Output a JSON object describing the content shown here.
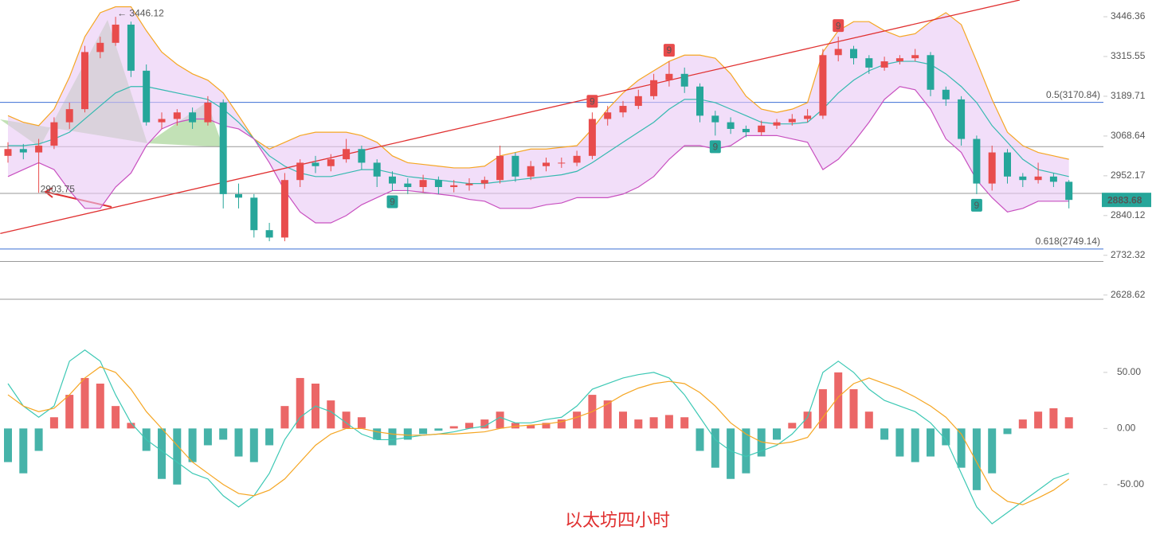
{
  "chart_data": [
    {
      "type": "candlestick",
      "title": "以太坊四小时",
      "log_scale": true,
      "ylim": [
        2540,
        3503
      ],
      "yticks": [
        3446.36,
        3315.55,
        3189.71,
        3068.64,
        2952.17,
        2840.12,
        2732.32,
        2628.62
      ],
      "up_color": "#e84c4c",
      "down_color": "#26a69a",
      "open": [
        3010,
        3030,
        3020,
        3040,
        3110,
        3150,
        3330,
        3360,
        3420,
        3270,
        3110,
        3120,
        3140,
        3110,
        3170,
        2900,
        2890,
        2800,
        2780,
        2940,
        2990,
        2980,
        3000,
        3030,
        2990,
        2950,
        2930,
        2920,
        2940,
        2920,
        2925,
        2930,
        2940,
        3010,
        2950,
        2980,
        2990,
        2990,
        3010,
        3120,
        3140,
        3160,
        3190,
        3240,
        3260,
        3220,
        3130,
        3110,
        3090,
        3080,
        3100,
        3110,
        3120,
        3130,
        3320,
        3340,
        3310,
        3280,
        3300,
        3310,
        3320,
        3210,
        3180,
        3060,
        2930,
        3020,
        2950,
        2940,
        2950,
        2935
      ],
      "high": [
        3050,
        3045,
        3060,
        3125,
        3170,
        3350,
        3380,
        3446.12,
        3430,
        3290,
        3140,
        3150,
        3155,
        3190,
        3180,
        2930,
        2900,
        2820,
        2960,
        3000,
        3010,
        3015,
        3060,
        3040,
        3000,
        2965,
        2945,
        2955,
        2950,
        2940,
        2945,
        2950,
        3040,
        3020,
        2995,
        3005,
        3005,
        3025,
        3140,
        3160,
        3175,
        3210,
        3260,
        3300,
        3280,
        3230,
        3145,
        3125,
        3100,
        3115,
        3120,
        3135,
        3150,
        3340,
        3380,
        3350,
        3320,
        3315,
        3320,
        3340,
        3330,
        3220,
        3190,
        3070,
        3040,
        3030,
        2960,
        2990,
        2960,
        2940
      ],
      "low": [
        2990,
        3000,
        2903.75,
        3030,
        3090,
        3140,
        3310,
        3350,
        3250,
        3100,
        3090,
        3100,
        3090,
        3100,
        2860,
        2860,
        2780,
        2770,
        2770,
        2920,
        2960,
        2965,
        2990,
        2970,
        2920,
        2910,
        2900,
        2905,
        2900,
        2905,
        2910,
        2915,
        2930,
        2935,
        2940,
        2965,
        2975,
        2980,
        3000,
        3100,
        3125,
        3150,
        3180,
        3220,
        3200,
        3110,
        3070,
        3075,
        3065,
        3070,
        3090,
        3100,
        3110,
        3120,
        3300,
        3290,
        3260,
        3270,
        3290,
        3300,
        3190,
        3160,
        3040,
        2900,
        2910,
        2930,
        2920,
        2930,
        2920,
        2860
      ],
      "close": [
        3030,
        3020,
        3040,
        3110,
        3150,
        3330,
        3360,
        3420,
        3270,
        3110,
        3120,
        3140,
        3110,
        3170,
        2900,
        2890,
        2800,
        2780,
        2940,
        2990,
        2980,
        3000,
        3030,
        2990,
        2950,
        2930,
        2920,
        2940,
        2920,
        2925,
        2930,
        2940,
        3010,
        2950,
        2980,
        2990,
        2990,
        3010,
        3120,
        3140,
        3160,
        3190,
        3240,
        3260,
        3220,
        3130,
        3110,
        3090,
        3080,
        3100,
        3110,
        3120,
        3130,
        3320,
        3340,
        3310,
        3280,
        3300,
        3310,
        3320,
        3210,
        3180,
        3060,
        2930,
        3020,
        2950,
        2940,
        2950,
        2935,
        2883.68
      ],
      "bands": {
        "upper": [
          3130,
          3110,
          3100,
          3150,
          3250,
          3380,
          3460,
          3480,
          3480,
          3400,
          3330,
          3290,
          3260,
          3240,
          3200,
          3130,
          3060,
          3030,
          3050,
          3070,
          3080,
          3080,
          3080,
          3070,
          3050,
          3010,
          2990,
          2985,
          2980,
          2975,
          2975,
          2980,
          3010,
          3020,
          3030,
          3030,
          3035,
          3040,
          3090,
          3150,
          3200,
          3240,
          3270,
          3300,
          3320,
          3320,
          3310,
          3260,
          3190,
          3150,
          3140,
          3150,
          3170,
          3330,
          3400,
          3430,
          3430,
          3400,
          3380,
          3390,
          3430,
          3460,
          3420,
          3300,
          3180,
          3080,
          3040,
          3020,
          3010,
          3000
        ],
        "middle": [
          3040,
          3040,
          3045,
          3060,
          3080,
          3120,
          3160,
          3200,
          3220,
          3220,
          3210,
          3200,
          3190,
          3180,
          3150,
          3110,
          3060,
          3010,
          2980,
          2960,
          2950,
          2950,
          2960,
          2970,
          2970,
          2960,
          2950,
          2945,
          2940,
          2935,
          2930,
          2930,
          2935,
          2940,
          2945,
          2950,
          2955,
          2965,
          2990,
          3020,
          3050,
          3080,
          3110,
          3150,
          3180,
          3180,
          3170,
          3150,
          3130,
          3110,
          3105,
          3105,
          3110,
          3150,
          3200,
          3240,
          3270,
          3290,
          3300,
          3300,
          3290,
          3260,
          3220,
          3170,
          3100,
          3050,
          3000,
          2970,
          2960,
          2950
        ],
        "lower": [
          2950,
          2970,
          2990,
          2970,
          2910,
          2860,
          2860,
          2920,
          2960,
          3040,
          3090,
          3110,
          3120,
          3120,
          3100,
          3090,
          3060,
          2990,
          2910,
          2850,
          2820,
          2820,
          2840,
          2870,
          2890,
          2910,
          2910,
          2905,
          2900,
          2895,
          2885,
          2880,
          2860,
          2860,
          2860,
          2870,
          2875,
          2890,
          2890,
          2890,
          2900,
          2920,
          2950,
          3000,
          3040,
          3040,
          3030,
          3040,
          3070,
          3070,
          3070,
          3060,
          3050,
          2970,
          3000,
          3050,
          3110,
          3180,
          3220,
          3210,
          3150,
          3060,
          3020,
          2940,
          2890,
          2850,
          2860,
          2880,
          2880,
          2880
        ],
        "upper_color": "#f5a623",
        "middle_color": "#35b9b0",
        "lower_color": "#c850c0",
        "fill_color": "#e9c8f5"
      },
      "fib_levels": [
        {
          "label": "0.5(3170.84)",
          "value": 3170.84
        },
        {
          "label": "0.618(2749.14)",
          "value": 2749.14
        }
      ],
      "fib_color": "#3b6fd4",
      "levels": [
        3037,
        2902,
        2716,
        2618
      ],
      "trendline": {
        "index": [
          -0.5,
          65.8
        ],
        "values": [
          2791,
          3503
        ],
        "color": "#e03030"
      },
      "annotations": [
        {
          "text": "← 3446.12",
          "index": 7,
          "value": 3446.12
        },
        {
          "text": "2903.75",
          "index": 2,
          "value": 2903.75
        }
      ],
      "td_marks": [
        {
          "label": "9",
          "index": 38,
          "side": "above"
        },
        {
          "label": "9",
          "index": 43,
          "side": "above"
        },
        {
          "label": "9",
          "index": 54,
          "side": "above"
        },
        {
          "label": "9",
          "index": 25,
          "side": "below"
        },
        {
          "label": "9",
          "index": 46,
          "side": "below"
        },
        {
          "label": "9",
          "index": 63,
          "side": "below"
        }
      ]
    },
    {
      "type": "macd",
      "ylim": [
        -97,
        84
      ],
      "yticks": [
        {
          "value": 50,
          "label": "50.00"
        },
        {
          "value": 0,
          "label": "0.00"
        },
        {
          "value": -50,
          "label": "-50.00"
        }
      ],
      "up_color": "#e84c4c",
      "down_color": "#26a69a",
      "dif_color": "#3cc8b4",
      "dea_color": "#f5a623",
      "histogram": [
        -30,
        -40,
        -20,
        10,
        30,
        45,
        40,
        20,
        5,
        -20,
        -45,
        -50,
        -30,
        -15,
        -10,
        -25,
        -30,
        -15,
        20,
        45,
        40,
        25,
        15,
        10,
        -10,
        -15,
        -10,
        -5,
        -2,
        2,
        5,
        8,
        15,
        5,
        3,
        5,
        8,
        15,
        30,
        25,
        15,
        8,
        10,
        12,
        10,
        -20,
        -35,
        -45,
        -40,
        -25,
        -10,
        5,
        15,
        35,
        50,
        35,
        15,
        -10,
        -25,
        -30,
        -25,
        -15,
        -35,
        -55,
        -40,
        -5,
        8,
        15,
        18,
        10
      ],
      "dif": [
        40,
        20,
        10,
        20,
        60,
        70,
        60,
        30,
        5,
        -10,
        -20,
        -30,
        -40,
        -45,
        -60,
        -70,
        -60,
        -40,
        -10,
        10,
        20,
        15,
        5,
        -5,
        -10,
        -10,
        -8,
        -6,
        -5,
        -3,
        0,
        2,
        10,
        5,
        5,
        8,
        10,
        20,
        35,
        40,
        45,
        48,
        50,
        45,
        30,
        10,
        -10,
        -20,
        -25,
        -20,
        -15,
        -5,
        10,
        50,
        60,
        50,
        35,
        25,
        20,
        15,
        5,
        -10,
        -40,
        -70,
        -85,
        -75,
        -65,
        -55,
        -45,
        -40
      ],
      "dea": [
        30,
        20,
        15,
        18,
        30,
        45,
        55,
        50,
        35,
        15,
        0,
        -15,
        -30,
        -40,
        -50,
        -58,
        -60,
        -55,
        -45,
        -30,
        -15,
        -5,
        0,
        0,
        -3,
        -5,
        -6,
        -6,
        -5,
        -5,
        -4,
        -3,
        0,
        2,
        3,
        4,
        6,
        10,
        15,
        22,
        30,
        36,
        40,
        42,
        40,
        32,
        20,
        5,
        -5,
        -12,
        -14,
        -12,
        -8,
        10,
        28,
        40,
        45,
        40,
        35,
        28,
        20,
        10,
        -5,
        -30,
        -55,
        -65,
        -68,
        -62,
        -55,
        -45
      ]
    }
  ]
}
